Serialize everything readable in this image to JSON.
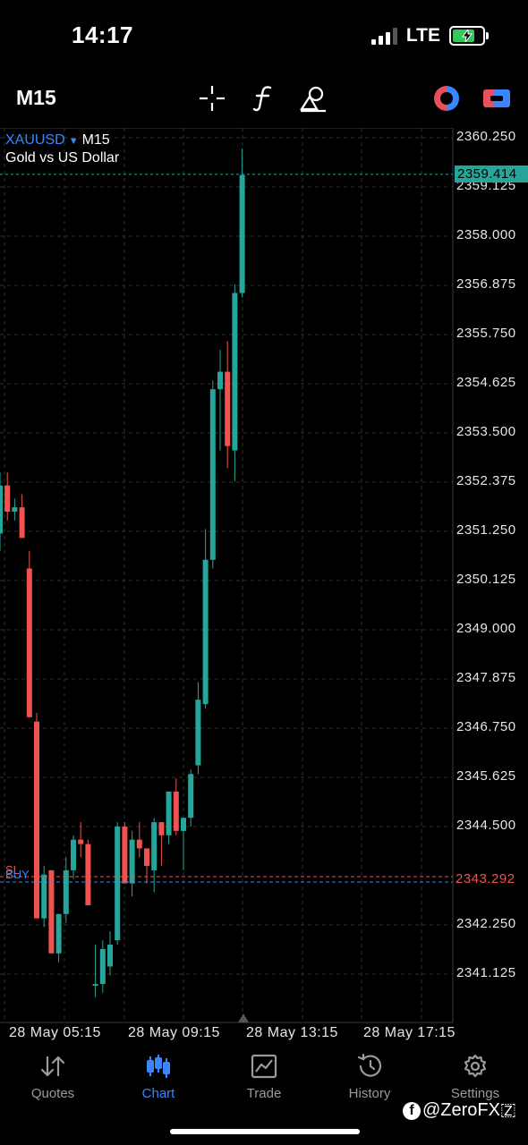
{
  "status_bar": {
    "time": "14:17",
    "network": "LTE",
    "battery": "charging"
  },
  "toolbar": {
    "timeframe": "M15",
    "icons": [
      "crosshair-icon",
      "indicators-f-icon",
      "objects-icon",
      "one-click-trading-icon",
      "trade-panel-icon"
    ]
  },
  "chart": {
    "symbol": "XAUUSD",
    "timeframe": "M15",
    "description": "Gold vs US Dollar",
    "bid_price": "2359.414",
    "position_level": "2343.292",
    "sl_label": "SL",
    "buy_label": "BUY",
    "price_ticks": [
      "2360.250",
      "2359.125",
      "2358.000",
      "2356.875",
      "2355.750",
      "2354.625",
      "2353.500",
      "2352.375",
      "2351.250",
      "2350.125",
      "2349.000",
      "2347.875",
      "2346.750",
      "2345.625",
      "2344.500",
      "2342.250",
      "2341.125"
    ],
    "time_ticks": [
      "28 May 05:15",
      "28 May 09:15",
      "28 May 13:15",
      "28 May 17:15"
    ],
    "colors": {
      "bull": "#26a69a",
      "bear": "#ef5350",
      "grid": "#2a2a2a",
      "background": "#000000"
    }
  },
  "chart_data": {
    "type": "candlestick",
    "title": "XAUUSD, M15",
    "ylim": [
      2340.3,
      2360.5
    ],
    "candles": [
      {
        "o": 2351.2,
        "h": 2352.6,
        "l": 2350.8,
        "c": 2352.3
      },
      {
        "o": 2352.3,
        "h": 2352.6,
        "l": 2351.5,
        "c": 2351.7
      },
      {
        "o": 2351.7,
        "h": 2352.0,
        "l": 2351.5,
        "c": 2351.8
      },
      {
        "o": 2351.8,
        "h": 2352.1,
        "l": 2351.1,
        "c": 2351.1
      },
      {
        "o": 2350.4,
        "h": 2350.8,
        "l": 2347.0,
        "c": 2347.0
      },
      {
        "o": 2346.9,
        "h": 2347.1,
        "l": 2342.4,
        "c": 2342.4
      },
      {
        "o": 2342.4,
        "h": 2343.6,
        "l": 2342.2,
        "c": 2343.4
      },
      {
        "o": 2343.5,
        "h": 2343.5,
        "l": 2341.6,
        "c": 2341.6
      },
      {
        "o": 2341.6,
        "h": 2342.5,
        "l": 2341.4,
        "c": 2342.5
      },
      {
        "o": 2342.5,
        "h": 2343.8,
        "l": 2342.3,
        "c": 2343.5
      },
      {
        "o": 2343.5,
        "h": 2344.3,
        "l": 2343.3,
        "c": 2344.2
      },
      {
        "o": 2344.2,
        "h": 2344.6,
        "l": 2343.8,
        "c": 2344.1
      },
      {
        "o": 2344.1,
        "h": 2344.2,
        "l": 2342.7,
        "c": 2342.7
      },
      {
        "o": 2340.9,
        "h": 2341.8,
        "l": 2340.6,
        "c": 2340.9
      },
      {
        "o": 2340.9,
        "h": 2341.9,
        "l": 2340.7,
        "c": 2341.7
      },
      {
        "o": 2341.3,
        "h": 2342.1,
        "l": 2341.1,
        "c": 2341.8
      },
      {
        "o": 2341.9,
        "h": 2344.6,
        "l": 2341.8,
        "c": 2344.5
      },
      {
        "o": 2344.5,
        "h": 2344.6,
        "l": 2343.2,
        "c": 2343.2
      },
      {
        "o": 2343.2,
        "h": 2344.4,
        "l": 2342.9,
        "c": 2344.2
      },
      {
        "o": 2344.2,
        "h": 2344.6,
        "l": 2343.8,
        "c": 2344.0
      },
      {
        "o": 2344.0,
        "h": 2344.0,
        "l": 2343.2,
        "c": 2343.6
      },
      {
        "o": 2343.5,
        "h": 2344.7,
        "l": 2343.0,
        "c": 2344.6
      },
      {
        "o": 2344.6,
        "h": 2344.6,
        "l": 2343.6,
        "c": 2344.3
      },
      {
        "o": 2344.3,
        "h": 2345.3,
        "l": 2344.1,
        "c": 2345.3
      },
      {
        "o": 2345.3,
        "h": 2345.6,
        "l": 2344.3,
        "c": 2344.4
      },
      {
        "o": 2344.4,
        "h": 2344.6,
        "l": 2343.5,
        "c": 2344.7
      },
      {
        "o": 2344.7,
        "h": 2345.8,
        "l": 2344.5,
        "c": 2345.7
      },
      {
        "o": 2345.9,
        "h": 2347.8,
        "l": 2345.7,
        "c": 2347.4
      },
      {
        "o": 2347.3,
        "h": 2351.3,
        "l": 2347.2,
        "c": 2350.6
      },
      {
        "o": 2350.6,
        "h": 2354.7,
        "l": 2350.4,
        "c": 2354.5
      },
      {
        "o": 2354.5,
        "h": 2355.4,
        "l": 2353.1,
        "c": 2354.9
      },
      {
        "o": 2354.9,
        "h": 2355.6,
        "l": 2352.7,
        "c": 2353.2
      },
      {
        "o": 2353.1,
        "h": 2356.9,
        "l": 2352.4,
        "c": 2356.7
      },
      {
        "o": 2356.7,
        "h": 2360.0,
        "l": 2356.6,
        "c": 2359.4
      }
    ],
    "bid": 2359.414,
    "levels": [
      {
        "name": "BUY",
        "value": 2343.292
      },
      {
        "name": "SL",
        "value": 2343.5
      }
    ]
  },
  "bottom_nav": [
    {
      "label": "Quotes",
      "icon": "quotes-arrows-icon",
      "active": false
    },
    {
      "label": "Chart",
      "icon": "chart-candles-icon",
      "active": true
    },
    {
      "label": "Trade",
      "icon": "trade-chart-icon",
      "active": false
    },
    {
      "label": "History",
      "icon": "history-clock-icon",
      "active": false
    },
    {
      "label": "Settings",
      "icon": "settings-gear-icon",
      "active": false
    }
  ],
  "watermark": "@ZeroFX🇿"
}
